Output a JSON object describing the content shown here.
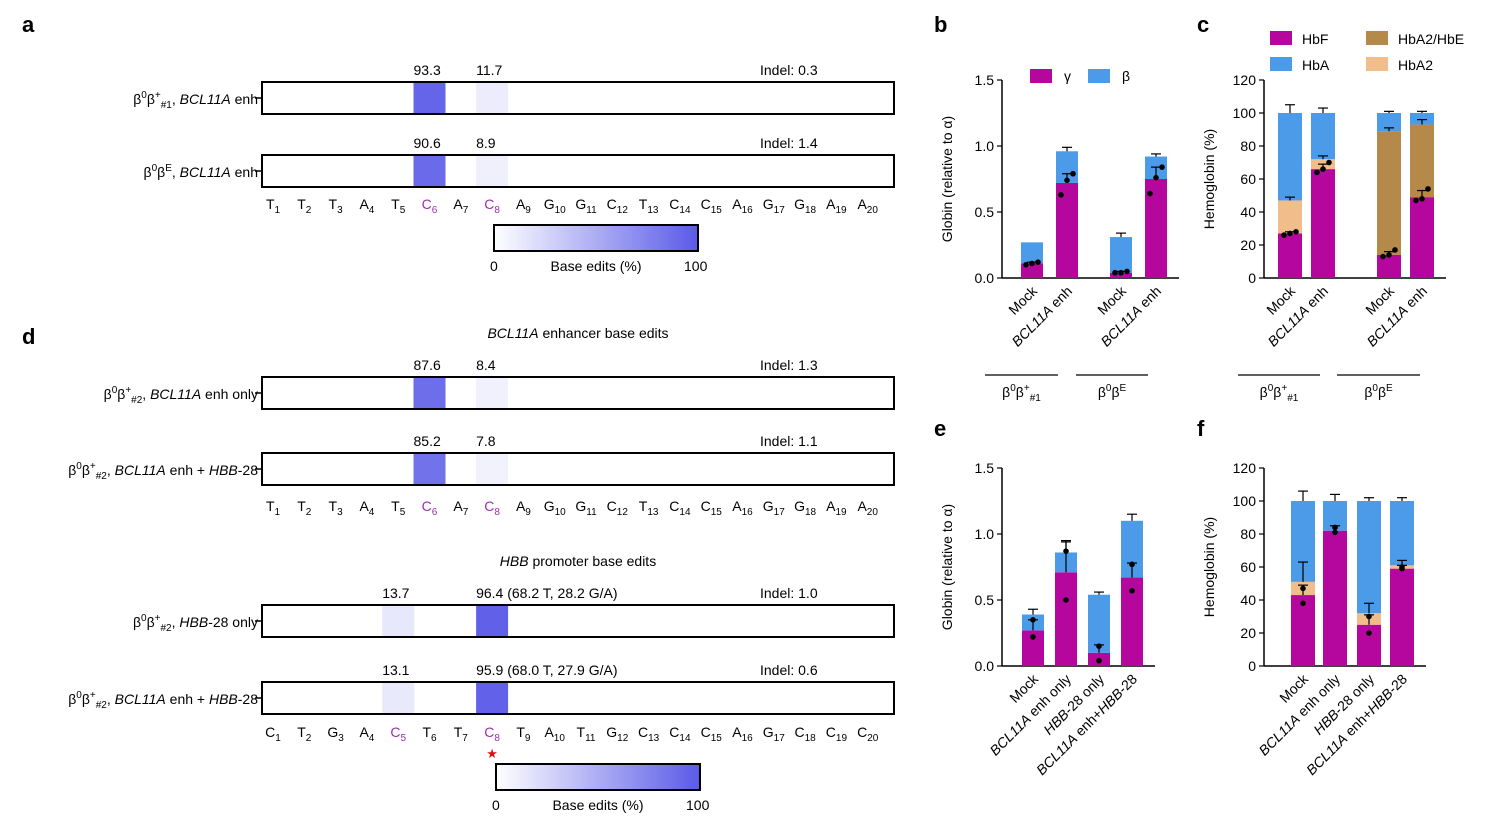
{
  "colors": {
    "gamma": "#b5079e",
    "beta": "#4c9be8",
    "hbf": "#b5079e",
    "hba": "#4c9be8",
    "hba2_hbe": "#b4894a",
    "hba2": "#f1bd8a",
    "heat_high": "#5a5ae8",
    "heat_low": "#ffffff",
    "purple_pos": "#9b2fae",
    "star": "#e01010"
  },
  "panel_letters": [
    "a",
    "b",
    "c",
    "d",
    "e",
    "f"
  ],
  "panel_a": {
    "colorbar": {
      "min": "0",
      "max": "100",
      "label": "Base edits (%)"
    },
    "positions": [
      {
        "base": "T",
        "sub": "1"
      },
      {
        "base": "T",
        "sub": "2"
      },
      {
        "base": "T",
        "sub": "3"
      },
      {
        "base": "A",
        "sub": "4"
      },
      {
        "base": "T",
        "sub": "5"
      },
      {
        "base": "C",
        "sub": "6",
        "purple": true
      },
      {
        "base": "A",
        "sub": "7"
      },
      {
        "base": "C",
        "sub": "8",
        "purple": true
      },
      {
        "base": "A",
        "sub": "9"
      },
      {
        "base": "G",
        "sub": "10"
      },
      {
        "base": "G",
        "sub": "11"
      },
      {
        "base": "C",
        "sub": "12"
      },
      {
        "base": "T",
        "sub": "13"
      },
      {
        "base": "C",
        "sub": "14"
      },
      {
        "base": "C",
        "sub": "15"
      },
      {
        "base": "A",
        "sub": "16"
      },
      {
        "base": "G",
        "sub": "17"
      },
      {
        "base": "G",
        "sub": "18"
      },
      {
        "base": "A",
        "sub": "19"
      },
      {
        "base": "A",
        "sub": "20"
      }
    ],
    "rows": [
      {
        "label": [
          "β",
          "0",
          "β",
          "+",
          "#1",
          ", ",
          "BCL11A",
          " enh"
        ],
        "edits": [
          {
            "pos": 6,
            "value": 93.3,
            "text": "93.3"
          },
          {
            "pos": 8,
            "value": 11.7,
            "text": "11.7"
          }
        ],
        "indel": "Indel: 0.3"
      },
      {
        "label": [
          "β",
          "0",
          "β",
          "E",
          "",
          ", ",
          "BCL11A",
          " enh"
        ],
        "edits": [
          {
            "pos": 6,
            "value": 90.6,
            "text": "90.6"
          },
          {
            "pos": 8,
            "value": 8.9,
            "text": "8.9"
          }
        ],
        "indel": "Indel: 1.4"
      }
    ]
  },
  "panel_d": {
    "title1_italic": "BCL11A",
    "title1_rest": " enhancer base edits",
    "title2_italic": "HBB",
    "title2_rest": " promoter base edits",
    "colorbar": {
      "min": "0",
      "max": "100",
      "label": "Base edits (%)"
    },
    "positions2": [
      {
        "base": "C",
        "sub": "1"
      },
      {
        "base": "T",
        "sub": "2"
      },
      {
        "base": "G",
        "sub": "3"
      },
      {
        "base": "A",
        "sub": "4"
      },
      {
        "base": "C",
        "sub": "5",
        "purple": true
      },
      {
        "base": "T",
        "sub": "6"
      },
      {
        "base": "T",
        "sub": "7"
      },
      {
        "base": "C",
        "sub": "8",
        "purple": true
      },
      {
        "base": "T",
        "sub": "9"
      },
      {
        "base": "A",
        "sub": "10"
      },
      {
        "base": "T",
        "sub": "11"
      },
      {
        "base": "G",
        "sub": "12"
      },
      {
        "base": "C",
        "sub": "13"
      },
      {
        "base": "C",
        "sub": "14"
      },
      {
        "base": "C",
        "sub": "15"
      },
      {
        "base": "A",
        "sub": "16"
      },
      {
        "base": "G",
        "sub": "17"
      },
      {
        "base": "C",
        "sub": "18"
      },
      {
        "base": "C",
        "sub": "19"
      },
      {
        "base": "C",
        "sub": "20"
      }
    ],
    "rows1": [
      {
        "label_parts": [
          [
            "β",
            ""
          ],
          [
            "0",
            "sup"
          ],
          [
            "β",
            ""
          ],
          [
            "+",
            "sup"
          ],
          [
            "#2",
            "sub"
          ],
          [
            ", ",
            ""
          ],
          [
            "BCL11A",
            "i"
          ],
          [
            " enh only",
            ""
          ]
        ],
        "edits": [
          {
            "pos": 6,
            "value": 87.6,
            "text": "87.6"
          },
          {
            "pos": 8,
            "value": 8.4,
            "text": "8.4"
          }
        ],
        "indel": "Indel: 1.3"
      },
      {
        "label_parts": [
          [
            "β",
            ""
          ],
          [
            "0",
            "sup"
          ],
          [
            "β",
            ""
          ],
          [
            "+",
            "sup"
          ],
          [
            "#2",
            "sub"
          ],
          [
            ", ",
            ""
          ],
          [
            "BCL11A",
            "i"
          ],
          [
            " enh + ",
            ""
          ],
          [
            "HBB",
            "i"
          ],
          [
            "-28",
            ""
          ]
        ],
        "edits": [
          {
            "pos": 6,
            "value": 85.2,
            "text": "85.2"
          },
          {
            "pos": 8,
            "value": 7.8,
            "text": "7.8"
          }
        ],
        "indel": "Indel: 1.1"
      }
    ],
    "rows2": [
      {
        "label_parts": [
          [
            "β",
            ""
          ],
          [
            "0",
            "sup"
          ],
          [
            "β",
            ""
          ],
          [
            "+",
            "sup"
          ],
          [
            "#2",
            "sub"
          ],
          [
            ", ",
            ""
          ],
          [
            "HBB",
            "i"
          ],
          [
            "-28 only",
            ""
          ]
        ],
        "edits": [
          {
            "pos": 5,
            "value": 13.7,
            "text": "13.7"
          },
          {
            "pos": 8,
            "value": 96.4,
            "text": "96.4 (68.2 T, 28.2 G/A)"
          }
        ],
        "indel": "Indel: 1.0"
      },
      {
        "label_parts": [
          [
            "β",
            ""
          ],
          [
            "0",
            "sup"
          ],
          [
            "β",
            ""
          ],
          [
            "+",
            "sup"
          ],
          [
            "#2",
            "sub"
          ],
          [
            ", ",
            ""
          ],
          [
            "BCL11A",
            "i"
          ],
          [
            " enh + ",
            ""
          ],
          [
            "HBB",
            "i"
          ],
          [
            "-28",
            ""
          ]
        ],
        "edits": [
          {
            "pos": 5,
            "value": 13.1,
            "text": "13.1"
          },
          {
            "pos": 8,
            "value": 95.9,
            "text": "95.9 (68.0 T, 27.9 G/A)"
          }
        ],
        "indel": "Indel: 0.6"
      }
    ]
  },
  "chart_data": [
    {
      "panel": "b",
      "type": "bar",
      "stacked": true,
      "ylabel": "Globin (relative to α)",
      "ylim": [
        0,
        1.5
      ],
      "yticks": [
        "0.0",
        "0.5",
        "1.0",
        "1.5"
      ],
      "categories": [
        "Mock",
        "BCL11A enh",
        "Mock",
        "BCL11A enh"
      ],
      "category_italic": [
        "",
        "BCL11A",
        "",
        "BCL11A"
      ],
      "category_rest": [
        "Mock",
        " enh",
        "Mock",
        " enh"
      ],
      "groups": [
        {
          "label": "β0β+#1",
          "members": [
            0,
            1
          ]
        },
        {
          "label": "β0βE",
          "members": [
            2,
            3
          ]
        }
      ],
      "series": [
        {
          "name": "γ",
          "values": [
            0.11,
            0.72,
            0.04,
            0.75
          ],
          "err": [
            0.01,
            0.07,
            0.01,
            0.09
          ]
        },
        {
          "name": "β",
          "values": [
            0.16,
            0.24,
            0.27,
            0.17
          ],
          "err": [
            0.0,
            0.03,
            0.03,
            0.02
          ]
        }
      ],
      "points": [
        [
          0.1,
          0.11,
          0.12
        ],
        [
          0.63,
          0.74,
          0.79
        ],
        [
          0.04,
          0.04,
          0.05
        ],
        [
          0.64,
          0.76,
          0.84
        ]
      ],
      "legend": "top"
    },
    {
      "panel": "c",
      "type": "bar",
      "stacked": true,
      "ylabel": "Hemoglobin (%)",
      "ylim": [
        0,
        120
      ],
      "yticks": [
        "0",
        "20",
        "40",
        "60",
        "80",
        "100",
        "120"
      ],
      "categories": [
        "Mock",
        "BCL11A enh",
        "Mock",
        "BCL11A enh"
      ],
      "category_italic": [
        "",
        "BCL11A",
        "",
        "BCL11A"
      ],
      "category_rest": [
        "Mock",
        " enh",
        "Mock",
        " enh"
      ],
      "groups": [
        {
          "label": "β0β+#1",
          "members": [
            0,
            1
          ]
        },
        {
          "label": "β0βE",
          "members": [
            2,
            3
          ]
        }
      ],
      "series": [
        {
          "name": "HbF",
          "values": [
            27,
            66,
            14,
            49
          ],
          "err": [
            1,
            3,
            2,
            4
          ]
        },
        {
          "name": "HbA2/HbE",
          "values": [
            0,
            0,
            75,
            44
          ],
          "err": [
            0,
            0,
            2,
            3
          ]
        },
        {
          "name": "HbA2",
          "values": [
            20,
            6,
            0,
            0
          ],
          "err": [
            2,
            2,
            0,
            0
          ]
        },
        {
          "name": "HbA",
          "values": [
            53,
            28,
            11,
            7
          ],
          "err": [
            5,
            3,
            1,
            1
          ]
        }
      ],
      "points": [
        [
          26,
          27,
          28
        ],
        [
          64,
          66,
          70
        ],
        [
          13,
          14,
          17
        ],
        [
          47,
          48,
          54
        ]
      ],
      "legend": "top"
    },
    {
      "panel": "e",
      "type": "bar",
      "stacked": true,
      "ylabel": "Globin (relative to α)",
      "ylim": [
        0,
        1.5
      ],
      "yticks": [
        "0.0",
        "0.5",
        "1.0",
        "1.5"
      ],
      "categories": [
        "Mock",
        "BCL11A enh only",
        "HBB-28 only",
        "BCL11A enh+HBB-28"
      ],
      "series": [
        {
          "name": "γ",
          "values": [
            0.27,
            0.71,
            0.1,
            0.67
          ],
          "err": [
            0.08,
            0.23,
            0.06,
            0.11
          ]
        },
        {
          "name": "β",
          "values": [
            0.12,
            0.15,
            0.44,
            0.43
          ],
          "err": [
            0.04,
            0.09,
            0.02,
            0.05
          ]
        }
      ],
      "points": [
        [
          0.22,
          0.35
        ],
        [
          0.5,
          0.87
        ],
        [
          0.04,
          0.15
        ],
        [
          0.57,
          0.77
        ]
      ]
    },
    {
      "panel": "f",
      "type": "bar",
      "stacked": true,
      "ylabel": "Hemoglobin (%)",
      "ylim": [
        0,
        120
      ],
      "yticks": [
        "0",
        "20",
        "40",
        "60",
        "80",
        "100",
        "120"
      ],
      "categories": [
        "Mock",
        "BCL11A enh only",
        "HBB-28 only",
        "BCL11A enh+HBB-28"
      ],
      "series": [
        {
          "name": "HbF",
          "values": [
            43,
            82,
            25,
            59
          ],
          "err": [
            6,
            3,
            6,
            2
          ]
        },
        {
          "name": "HbA2",
          "values": [
            8,
            0,
            7,
            2
          ],
          "err": [
            12,
            0,
            6,
            3
          ]
        },
        {
          "name": "HbA",
          "values": [
            49,
            18,
            68,
            39
          ],
          "err": [
            6,
            4,
            2,
            2
          ]
        }
      ],
      "points": [
        [
          38,
          47
        ],
        [
          81,
          84
        ],
        [
          20,
          30
        ],
        [
          59,
          60
        ]
      ]
    }
  ]
}
